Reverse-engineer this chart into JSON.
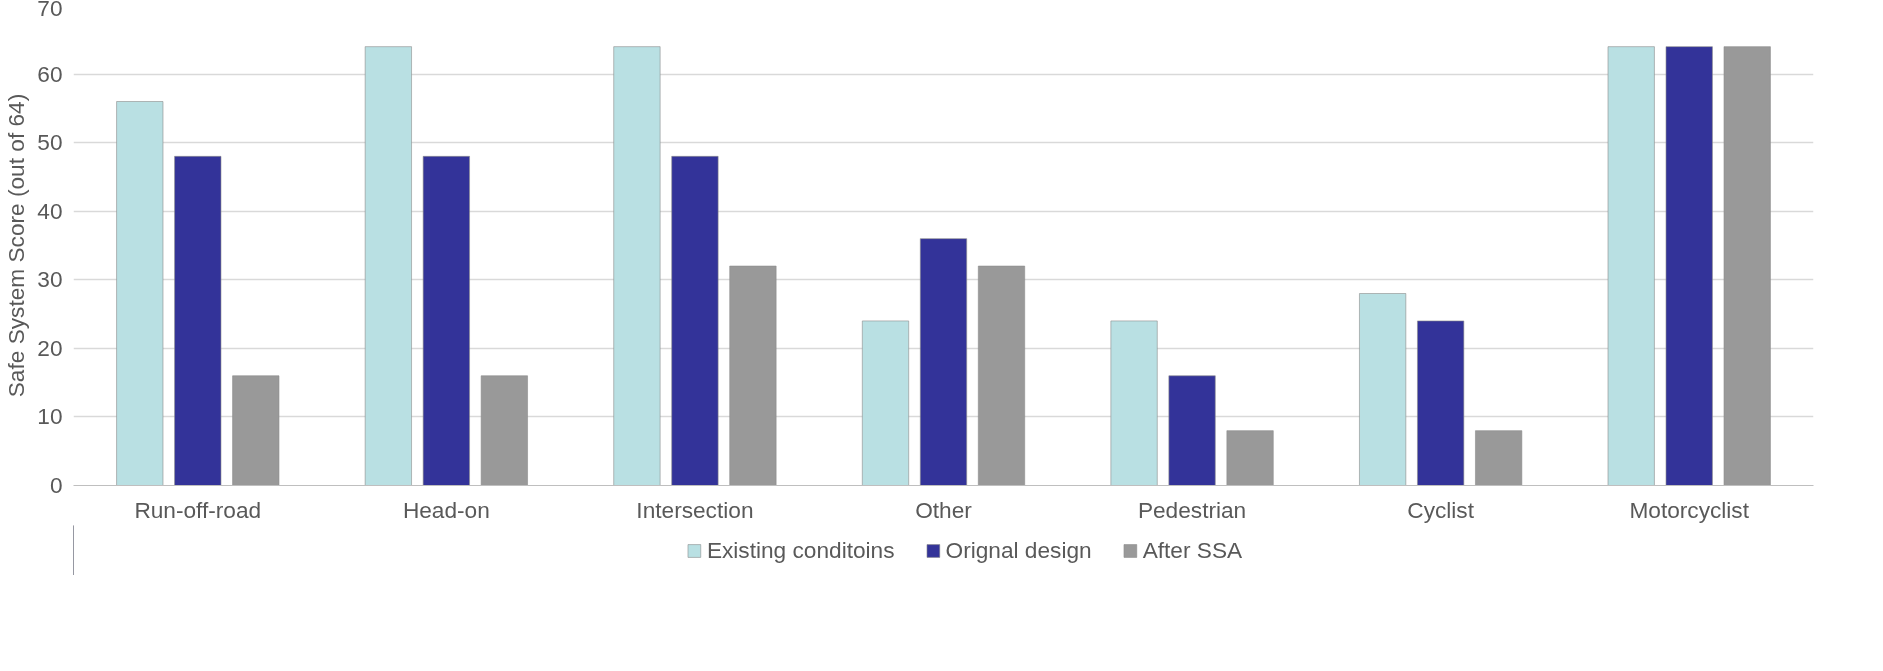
{
  "chart_data": {
    "type": "bar",
    "ylabel": "Safe System Score (out of 64)",
    "categories": [
      "Run-off-road",
      "Head-on",
      "Intersection",
      "Other",
      "Pedestrian",
      "Cyclist",
      "Motorcyclist"
    ],
    "series": [
      {
        "name": "Existing conditoins",
        "color": "#b9e0e3",
        "values": [
          56,
          64,
          64,
          24,
          24,
          28,
          64
        ]
      },
      {
        "name": "Orignal design",
        "color": "#333399",
        "values": [
          48,
          48,
          48,
          36,
          16,
          24,
          64
        ]
      },
      {
        "name": "After SSA",
        "color": "#999999",
        "values": [
          16,
          16,
          32,
          32,
          8,
          8,
          64
        ]
      }
    ],
    "ylim": [
      0,
      70
    ],
    "yticks": [
      0,
      10,
      20,
      30,
      40,
      50,
      60,
      70
    ],
    "grid": "y",
    "legend": "bottom"
  }
}
